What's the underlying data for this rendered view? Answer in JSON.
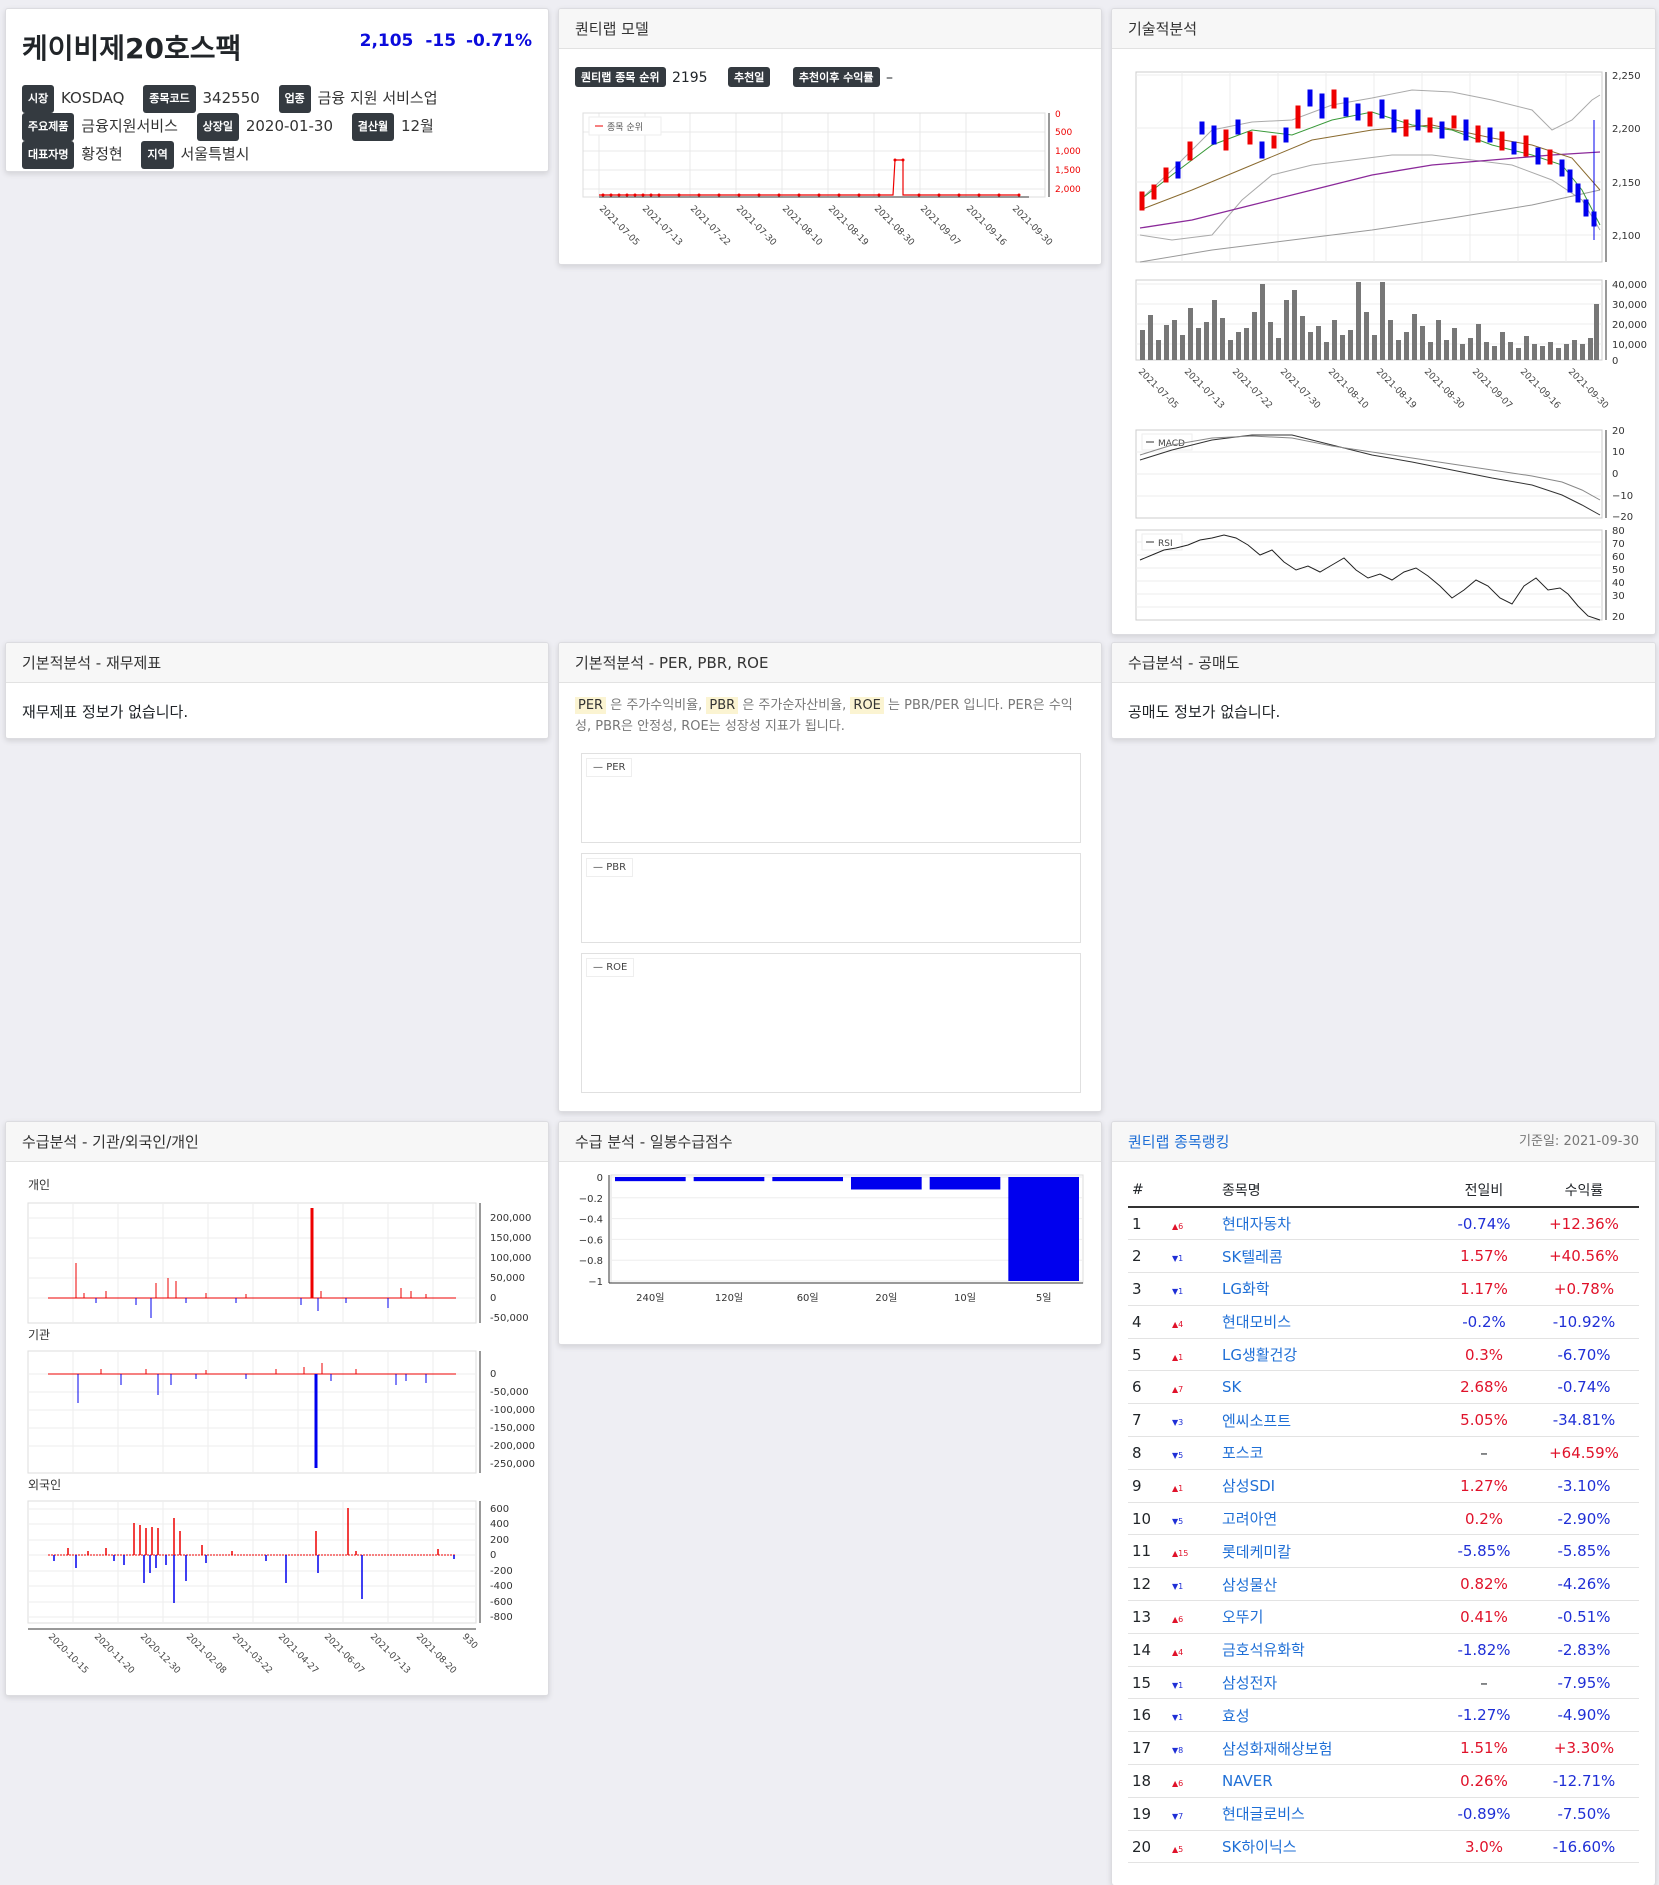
{
  "stock": {
    "name": "케이비제20호스팩",
    "price": "2,105",
    "change": "-15",
    "change_pct": "-0.71%",
    "fields": [
      {
        "label": "시장",
        "value": "KOSDAQ"
      },
      {
        "label": "종목코드",
        "value": "342550"
      },
      {
        "label": "업종",
        "value": "금융 지원 서비스업"
      },
      {
        "label": "주요제품",
        "value": "금융지원서비스"
      },
      {
        "label": "상장일",
        "value": "2020-01-30"
      },
      {
        "label": "결산월",
        "value": "12월"
      },
      {
        "label": "대표자명",
        "value": "황정현"
      },
      {
        "label": "지역",
        "value": "서울특별시"
      }
    ]
  },
  "quantilab_model": {
    "title": "퀀티랩 모델",
    "rank_label": "퀀티랩 종목 순위",
    "rank_value": "2195",
    "recommend_label": "추천일",
    "recommend_value": "",
    "return_label": "추천이후 수익률",
    "return_value": "–",
    "legend": "종목 순위",
    "y_ticks": [
      "0",
      "500",
      "1,000",
      "1,500",
      "2,000"
    ],
    "x_ticks": [
      "2021-07-05",
      "2021-07-13",
      "2021-07-22",
      "2021-07-30",
      "2021-08-10",
      "2021-08-19",
      "2021-08-30",
      "2021-09-07",
      "2021-09-16",
      "2021-09-30"
    ]
  },
  "technical": {
    "title": "기술적분석",
    "price_ticks": [
      "2,250",
      "2,200",
      "2,150",
      "2,100"
    ],
    "volume_ticks": [
      "40,000",
      "30,000",
      "20,000",
      "10,000",
      "0"
    ],
    "x_ticks": [
      "2021-07-05",
      "2021-07-13",
      "2021-07-22",
      "2021-07-30",
      "2021-08-10",
      "2021-08-19",
      "2021-08-30",
      "2021-09-07",
      "2021-09-16",
      "2021-09-30"
    ],
    "macd_label": "MACD",
    "macd_ticks": [
      "20",
      "10",
      "0",
      "−10",
      "−20"
    ],
    "rsi_label": "RSI",
    "rsi_ticks": [
      "80",
      "70",
      "60",
      "50",
      "40",
      "30",
      "20"
    ]
  },
  "financial": {
    "title": "기본적분석 - 재무제표",
    "message": "재무제표 정보가 없습니다."
  },
  "valuation": {
    "title": "기본적분석 - PER, PBR, ROE",
    "per": "PER",
    "per_desc": "은 주가수익비율,",
    "pbr": "PBR",
    "pbr_desc": "은 주가순자산비율,",
    "roe": "ROE",
    "roe_desc": "는 PBR/PER 입니다. PER은 수익성, PBR은 안정성, ROE는 성장성 지표가 됩니다.",
    "legends": [
      "PER",
      "PBR",
      "ROE"
    ]
  },
  "short_selling": {
    "title": "수급분석 - 공매도",
    "message": "공매도 정보가 없습니다."
  },
  "supply": {
    "title": "수급분석 - 기관/외국인/개인",
    "individual_label": "개인",
    "individual_ticks": [
      "200,000",
      "150,000",
      "100,000",
      "50,000",
      "0",
      "-50,000"
    ],
    "institution_label": "기관",
    "institution_ticks": [
      "0",
      "-50,000",
      "-100,000",
      "-150,000",
      "-200,000",
      "-250,000"
    ],
    "foreign_label": "외국인",
    "foreign_ticks": [
      "600",
      "400",
      "200",
      "0",
      "-200",
      "-400",
      "-600",
      "-800"
    ],
    "x_ticks": [
      "2020-10-15",
      "2020-11-20",
      "2020-12-30",
      "2021-02-08",
      "2021-03-22",
      "2021-04-27",
      "2021-06-07",
      "2021-07-13",
      "2021-08-20",
      "930"
    ]
  },
  "daily_supply": {
    "title": "수급 분석 - 일봉수급점수",
    "chart_data": {
      "type": "bar",
      "categories": [
        "240일",
        "120일",
        "60일",
        "20일",
        "10일",
        "5일"
      ],
      "values": [
        -0.04,
        -0.04,
        -0.04,
        -0.12,
        -0.12,
        -1
      ],
      "ylim": [
        -1,
        0
      ],
      "y_ticks": [
        "0",
        "−0.2",
        "−0.4",
        "−0.6",
        "−0.8",
        "−1"
      ],
      "color": "#0000ee"
    }
  },
  "ranking": {
    "title": "퀀티랩 종목랭킹",
    "date": "기준일: 2021-09-30",
    "headers": [
      "#",
      "종목명",
      "전일비",
      "수익률"
    ],
    "rows": [
      {
        "rank": "1",
        "move": "▲6",
        "up": true,
        "name": "현대자동차",
        "daily": "-0.74%",
        "daily_neg": true,
        "ret": "+12.36%",
        "ret_neg": false
      },
      {
        "rank": "2",
        "move": "▼1",
        "up": false,
        "name": "SK텔레콤",
        "daily": "1.57%",
        "daily_neg": false,
        "ret": "+40.56%",
        "ret_neg": false
      },
      {
        "rank": "3",
        "move": "▼1",
        "up": false,
        "name": "LG화학",
        "daily": "1.17%",
        "daily_neg": false,
        "ret": "+0.78%",
        "ret_neg": false
      },
      {
        "rank": "4",
        "move": "▲4",
        "up": true,
        "name": "현대모비스",
        "daily": "-0.2%",
        "daily_neg": true,
        "ret": "-10.92%",
        "ret_neg": true
      },
      {
        "rank": "5",
        "move": "▲1",
        "up": true,
        "name": "LG생활건강",
        "daily": "0.3%",
        "daily_neg": false,
        "ret": "-6.70%",
        "ret_neg": true
      },
      {
        "rank": "6",
        "move": "▲7",
        "up": true,
        "name": "SK",
        "daily": "2.68%",
        "daily_neg": false,
        "ret": "-0.74%",
        "ret_neg": true
      },
      {
        "rank": "7",
        "move": "▼3",
        "up": false,
        "name": "엔씨소프트",
        "daily": "5.05%",
        "daily_neg": false,
        "ret": "-34.81%",
        "ret_neg": true
      },
      {
        "rank": "8",
        "move": "▼5",
        "up": false,
        "name": "포스코",
        "daily": "–",
        "daily_neg": null,
        "ret": "+64.59%",
        "ret_neg": false
      },
      {
        "rank": "9",
        "move": "▲1",
        "up": true,
        "name": "삼성SDI",
        "daily": "1.27%",
        "daily_neg": false,
        "ret": "-3.10%",
        "ret_neg": true
      },
      {
        "rank": "10",
        "move": "▼5",
        "up": false,
        "name": "고려아연",
        "daily": "0.2%",
        "daily_neg": false,
        "ret": "-2.90%",
        "ret_neg": true
      },
      {
        "rank": "11",
        "move": "▲15",
        "up": true,
        "name": "롯데케미칼",
        "daily": "-5.85%",
        "daily_neg": true,
        "ret": "-5.85%",
        "ret_neg": true
      },
      {
        "rank": "12",
        "move": "▼1",
        "up": false,
        "name": "삼성물산",
        "daily": "0.82%",
        "daily_neg": false,
        "ret": "-4.26%",
        "ret_neg": true
      },
      {
        "rank": "13",
        "move": "▲6",
        "up": true,
        "name": "오뚜기",
        "daily": "0.41%",
        "daily_neg": false,
        "ret": "-0.51%",
        "ret_neg": true
      },
      {
        "rank": "14",
        "move": "▲4",
        "up": true,
        "name": "금호석유화학",
        "daily": "-1.82%",
        "daily_neg": true,
        "ret": "-2.83%",
        "ret_neg": true
      },
      {
        "rank": "15",
        "move": "▼1",
        "up": false,
        "name": "삼성전자",
        "daily": "–",
        "daily_neg": null,
        "ret": "-7.95%",
        "ret_neg": true
      },
      {
        "rank": "16",
        "move": "▼1",
        "up": false,
        "name": "효성",
        "daily": "-1.27%",
        "daily_neg": true,
        "ret": "-4.90%",
        "ret_neg": true
      },
      {
        "rank": "17",
        "move": "▼8",
        "up": false,
        "name": "삼성화재해상보험",
        "daily": "1.51%",
        "daily_neg": false,
        "ret": "+3.30%",
        "ret_neg": false
      },
      {
        "rank": "18",
        "move": "▲6",
        "up": true,
        "name": "NAVER",
        "daily": "0.26%",
        "daily_neg": false,
        "ret": "-12.71%",
        "ret_neg": true
      },
      {
        "rank": "19",
        "move": "▼7",
        "up": false,
        "name": "현대글로비스",
        "daily": "-0.89%",
        "daily_neg": true,
        "ret": "-7.50%",
        "ret_neg": true
      },
      {
        "rank": "20",
        "move": "▲5",
        "up": true,
        "name": "SK하이닉스",
        "daily": "3.0%",
        "daily_neg": false,
        "ret": "-16.60%",
        "ret_neg": true
      }
    ]
  }
}
